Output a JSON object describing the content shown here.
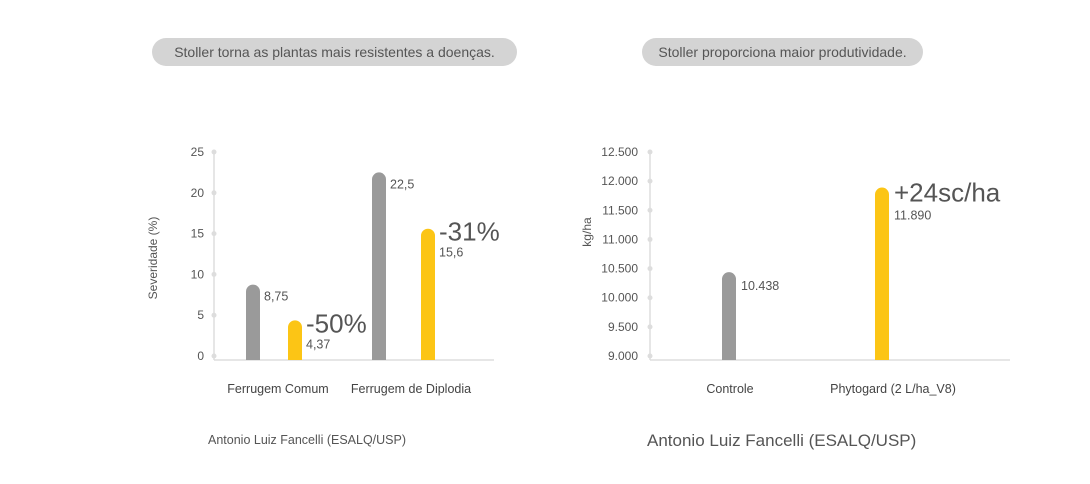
{
  "colors": {
    "gray": "#9a9a9a",
    "yellow": "#fcc515",
    "axis": "#dddddd"
  },
  "left": {
    "pill": "Stoller torna as plantas mais resistentes a doenças.",
    "source": "Antonio Luiz Fancelli (ESALQ/USP)"
  },
  "right": {
    "pill": "Stoller proporciona maior produtividade.",
    "source": "Antonio Luiz Fancelli (ESALQ/USP)"
  },
  "chart_data": [
    {
      "type": "bar",
      "title": "",
      "ylabel": "Severidade (%)",
      "xlabel": "",
      "ylim": [
        0,
        25
      ],
      "yticks": [
        0,
        5,
        10,
        15,
        20,
        25
      ],
      "ytick_labels": [
        "0",
        "5",
        "10",
        "15",
        "20",
        "25"
      ],
      "categories": [
        "Ferrugem Comum",
        "Ferrugem de Diplodia"
      ],
      "series": [
        {
          "color": "#9a9a9a",
          "values": [
            8.75,
            22.5
          ],
          "labels": [
            "8,75",
            "22,5"
          ]
        },
        {
          "color": "#fcc515",
          "values": [
            4.37,
            15.6
          ],
          "labels": [
            "4,37",
            "15,6"
          ]
        }
      ],
      "annotations": [
        "-50%",
        "-31%"
      ]
    },
    {
      "type": "bar",
      "title": "",
      "ylabel": "kg/ha",
      "xlabel": "",
      "ylim": [
        9000,
        12500
      ],
      "yticks": [
        9000,
        9500,
        10000,
        10500,
        11000,
        11500,
        12000,
        12500
      ],
      "ytick_labels": [
        "9.000",
        "9.500",
        "10.000",
        "10.500",
        "11.000",
        "11.500",
        "12.000",
        "12.500"
      ],
      "categories": [
        "Controle",
        "Phytogard (2 L/ha_V8)"
      ],
      "values": [
        10438,
        11890
      ],
      "colors": [
        "#9a9a9a",
        "#fcc515"
      ],
      "labels": [
        "10.438",
        "11.890"
      ],
      "annotations": [
        "",
        "+24sc/ha"
      ]
    }
  ]
}
